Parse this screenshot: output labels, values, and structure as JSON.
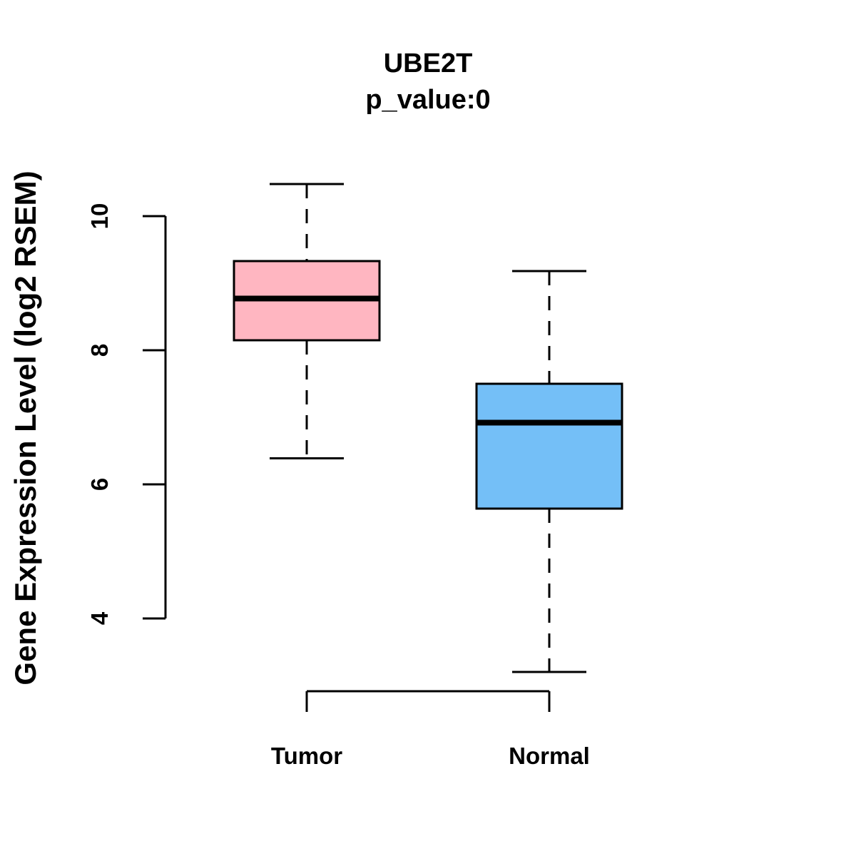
{
  "chart_data": {
    "type": "boxplot",
    "title": "UBE2T",
    "subtitle": "p_value:0",
    "ylabel": "Gene Expression Level (log2 RSEM)",
    "xlabel": "",
    "yticks": [
      10,
      8,
      6,
      4
    ],
    "ylim": [
      3.2,
      10.5
    ],
    "grid": false,
    "legend": "none",
    "background_color": "#FFFFFF",
    "axis_color": "#000000",
    "categories": [
      "Tumor",
      "Normal"
    ],
    "groups": [
      {
        "name": "Tumor",
        "color": "#FFB6C1",
        "whisker_low": 6.39,
        "q1": 8.15,
        "median": 8.77,
        "q3": 9.33,
        "whisker_high": 10.48
      },
      {
        "name": "Normal",
        "color": "#74BFF7",
        "whisker_low": 3.2,
        "q1": 5.64,
        "median": 6.92,
        "q3": 7.5,
        "whisker_high": 9.18
      }
    ]
  }
}
